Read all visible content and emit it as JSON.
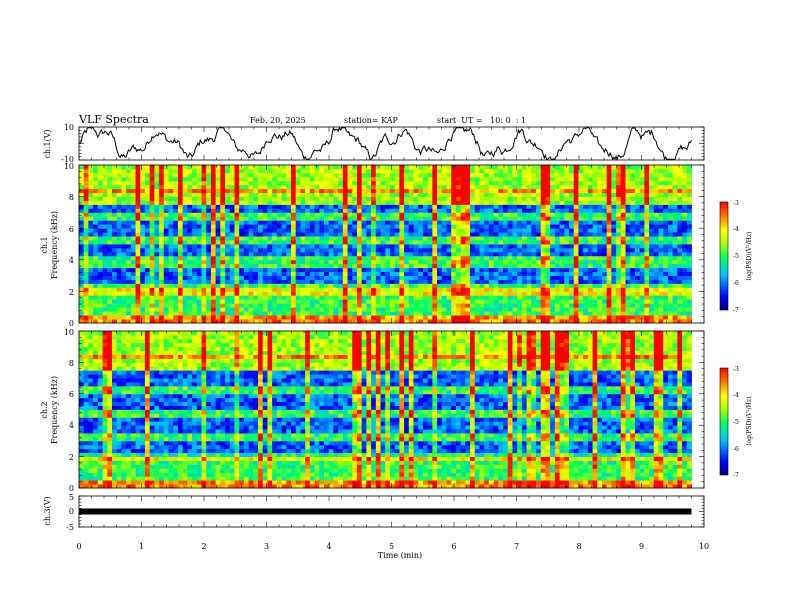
{
  "header": {
    "title": "VLF Spectra",
    "date": "Feb. 20, 2025",
    "station": "station= KAP",
    "start_time": "start  UT =   10: 0  : 1"
  },
  "chart_data": [
    {
      "type": "line",
      "title": "",
      "ylabel": "ch.1(V)",
      "xlabel": "",
      "xlim": [
        0,
        10
      ],
      "ylim": [
        -10,
        10
      ],
      "yticks": [
        "10",
        "-10"
      ],
      "series": [
        {
          "description": "noisy waveform around zero",
          "x_range": [
            0,
            9.8
          ]
        }
      ]
    },
    {
      "type": "heatmap",
      "title": "",
      "channel_label": "ch.1",
      "ylabel": "Frequency (kHz)",
      "xlim": [
        0,
        10
      ],
      "ylim": [
        0,
        10
      ],
      "yticks": [
        "0",
        "2",
        "4",
        "6",
        "8",
        "10"
      ],
      "data_x_range": [
        0,
        9.8
      ],
      "colorbar": {
        "label": "log(PSD)(V²/Hz)",
        "range": [
          -7,
          -3
        ],
        "ticks": [
          "-3",
          "-4",
          "-5",
          "-6",
          "-7"
        ]
      },
      "bands_low": [
        {
          "from": 2.4,
          "to": 3.6
        },
        {
          "from": 5.5,
          "to": 6.4
        },
        {
          "from": 4.2,
          "to": 5.0
        },
        {
          "from": 7.0,
          "to": 7.5
        }
      ]
    },
    {
      "type": "heatmap",
      "title": "",
      "channel_label": "ch.2",
      "ylabel": "Frequency (kHz)",
      "xlim": [
        0,
        10
      ],
      "ylim": [
        0,
        10
      ],
      "yticks": [
        "0",
        "2",
        "4",
        "6",
        "8",
        "10"
      ],
      "data_x_range": [
        0,
        9.8
      ],
      "colorbar": {
        "label": "log(PSD)(V²/Hz)",
        "range": [
          -7,
          -3
        ],
        "ticks": [
          "-3",
          "-4",
          "-5",
          "-6",
          "-7"
        ]
      },
      "bands_low": [
        {
          "from": 2.0,
          "to": 3.1
        },
        {
          "from": 3.6,
          "to": 4.6
        },
        {
          "from": 5.0,
          "to": 6.1
        },
        {
          "from": 6.6,
          "to": 7.4
        }
      ]
    },
    {
      "type": "line",
      "title": "",
      "ylabel": "ch.3(V)",
      "xlabel": "Time (min)",
      "xlim": [
        0,
        10
      ],
      "ylim": [
        -5,
        5
      ],
      "yticks": [
        "5",
        "0",
        "-5"
      ],
      "xticks": [
        "0",
        "1",
        "2",
        "3",
        "4",
        "5",
        "6",
        "7",
        "8",
        "9",
        "10"
      ],
      "series": [
        {
          "description": "flat thick trace near zero",
          "y": 0,
          "x_range": [
            0,
            9.8
          ]
        }
      ]
    }
  ]
}
